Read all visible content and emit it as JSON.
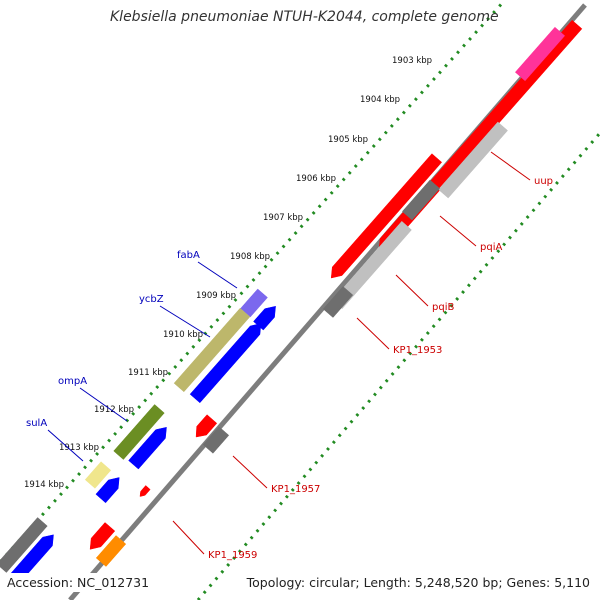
{
  "title": "Klebsiella pneumoniae NTUH-K2044, complete genome",
  "footer": {
    "accession": "Accession: NC_012731",
    "summary": "Topology: circular; Length: 5,248,520 bp; Genes: 5,110"
  },
  "ticks": [
    "1903 kbp",
    "1904 kbp",
    "1905 kbp",
    "1906 kbp",
    "1907 kbp",
    "1908 kbp",
    "1909 kbp",
    "1910 kbp",
    "1911 kbp",
    "1912 kbp",
    "1913 kbp",
    "1914 kbp"
  ],
  "gene_labels_left": [
    "fabA",
    "ycbZ",
    "ompA",
    "sulA"
  ],
  "gene_labels_right": [
    "uup",
    "pqiA",
    "pqiB",
    "KP1_1953",
    "KP1_1957",
    "KP1_1959"
  ],
  "colors": {
    "label_left": "#0000bb",
    "label_right": "#cc0000",
    "tick_dots": "#228b22",
    "backbone": "#808080",
    "cds_forward": "#0000ff",
    "cds_reverse": "#ff0000"
  }
}
